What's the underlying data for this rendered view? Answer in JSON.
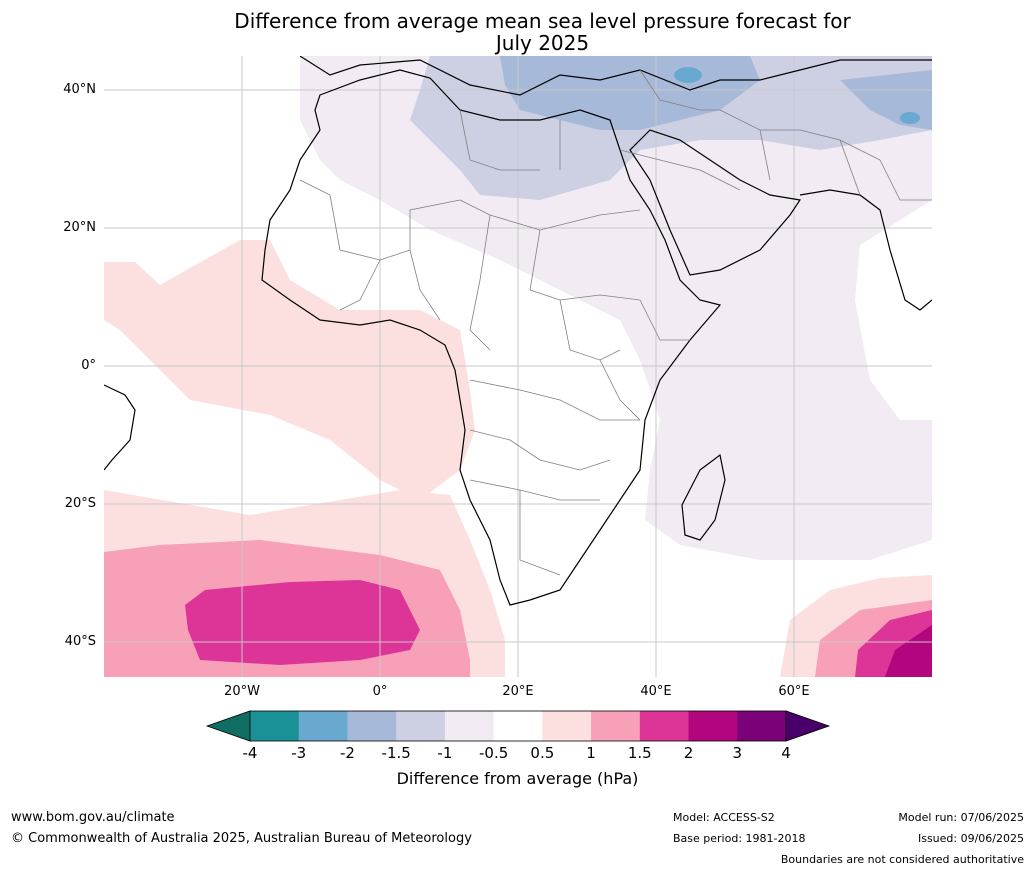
{
  "title_line1": "Difference from average mean sea level pressure forecast for",
  "title_line2": "July 2025",
  "latitude_labels": [
    "40°N",
    "20°N",
    "0°",
    "20°S",
    "40°S"
  ],
  "longitude_labels": [
    "20°W",
    "0°",
    "20°E",
    "40°E",
    "60°E"
  ],
  "colorbar": {
    "ticks": [
      "-4",
      "-3",
      "-2",
      "-1.5",
      "-1",
      "-0.5",
      "0.5",
      "1",
      "1.5",
      "2",
      "3",
      "4"
    ],
    "colors": [
      "#1a9196",
      "#69a9d0",
      "#a6b9d8",
      "#cdcfe3",
      "#f2ebf4",
      "#ffffff",
      "#fce0df",
      "#f7a0b8",
      "#dc3597",
      "#b3057d",
      "#7a0177"
    ],
    "under_color": "#0f6e61",
    "over_color": "#49006a",
    "label": "Difference from average (hPa)"
  },
  "footer": {
    "website": "www.bom.gov.au/climate",
    "copyright": "© Commonwealth of Australia 2025, Australian Bureau of Meteorology",
    "model": "Model: ACCESS-S2",
    "base_period": "Base period: 1981-2018",
    "model_run": "Model run: 07/06/2025",
    "issued": "Issued: 09/06/2025",
    "disclaimer": "Boundaries are not considered authoritative"
  }
}
